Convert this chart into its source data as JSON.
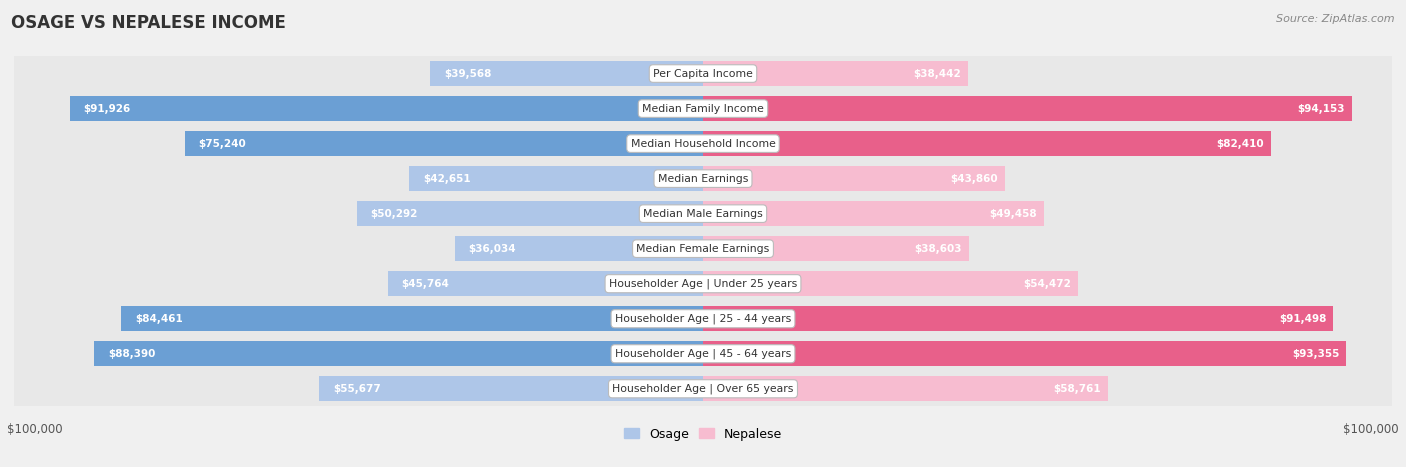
{
  "title": "OSAGE VS NEPALESE INCOME",
  "source": "Source: ZipAtlas.com",
  "categories": [
    "Per Capita Income",
    "Median Family Income",
    "Median Household Income",
    "Median Earnings",
    "Median Male Earnings",
    "Median Female Earnings",
    "Householder Age | Under 25 years",
    "Householder Age | 25 - 44 years",
    "Householder Age | 45 - 64 years",
    "Householder Age | Over 65 years"
  ],
  "osage_values": [
    39568,
    91926,
    75240,
    42651,
    50292,
    36034,
    45764,
    84461,
    88390,
    55677
  ],
  "nepalese_values": [
    38442,
    94153,
    82410,
    43860,
    49458,
    38603,
    54472,
    91498,
    93355,
    58761
  ],
  "osage_labels": [
    "$39,568",
    "$91,926",
    "$75,240",
    "$42,651",
    "$50,292",
    "$36,034",
    "$45,764",
    "$84,461",
    "$88,390",
    "$55,677"
  ],
  "nepalese_labels": [
    "$38,442",
    "$94,153",
    "$82,410",
    "$43,860",
    "$49,458",
    "$38,603",
    "$54,472",
    "$91,498",
    "$93,355",
    "$58,761"
  ],
  "max_value": 100000,
  "osage_color_light": "#aec6e8",
  "osage_color_dark": "#6b9fd4",
  "nepalese_color_light": "#f7bcd0",
  "nepalese_color_dark": "#e8608a",
  "dark_threshold": 0.65,
  "bar_height": 0.72,
  "bg_color": "#f0f0f0",
  "row_bg_even": "#ffffff",
  "row_bg_odd": "#e8e8e8",
  "row_border": "#cccccc",
  "xlabel_left": "$100,000",
  "xlabel_right": "$100,000",
  "legend_osage": "Osage",
  "legend_nepalese": "Nepalese"
}
